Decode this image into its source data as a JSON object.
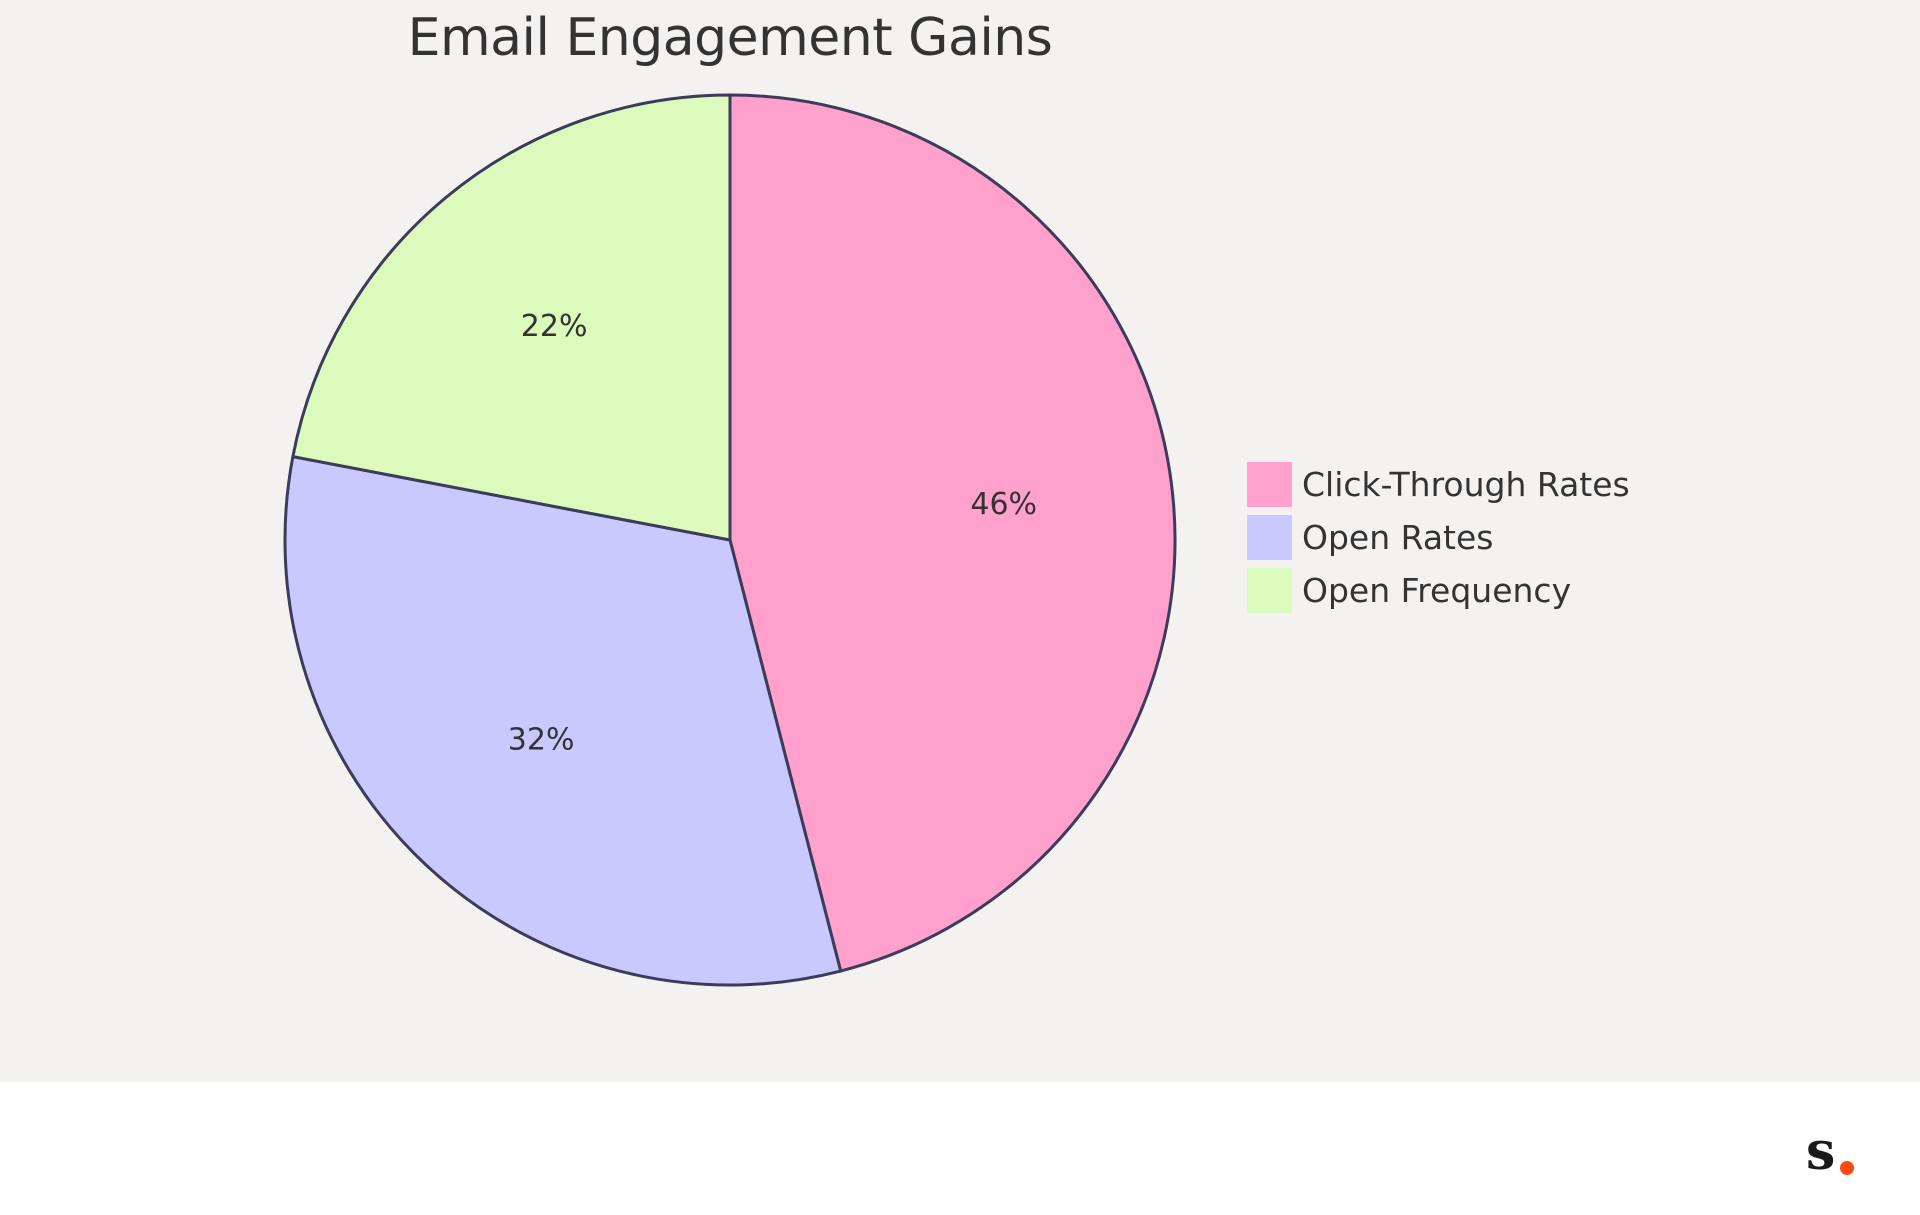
{
  "chart_data": {
    "type": "pie",
    "title": "Email Engagement Gains",
    "slices": [
      {
        "label": "Click-Through Rates",
        "value": 46,
        "display": "46%",
        "color": "#ffa1cc"
      },
      {
        "label": "Open Rates",
        "value": 32,
        "display": "32%",
        "color": "#c9c9ff"
      },
      {
        "label": "Open Frequency",
        "value": 22,
        "display": "22%",
        "color": "#dcfabb"
      }
    ],
    "legend_position": "right",
    "stroke_color": "#3c3c5a"
  },
  "colors": {
    "chart_background": "#f3f2f1",
    "page_background": "#ffffff",
    "text": "#333333",
    "logo_dark": "#1a1a1a",
    "logo_accent": "#ff4b12"
  },
  "brand": {
    "logo_icon": "s-dot-logo"
  }
}
